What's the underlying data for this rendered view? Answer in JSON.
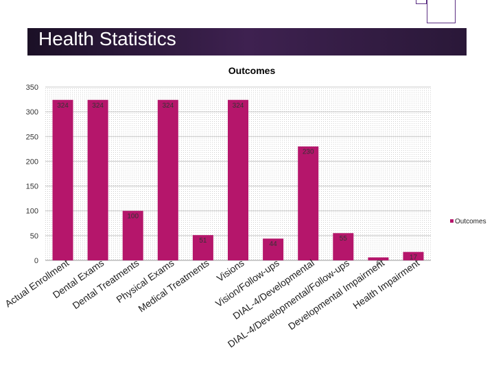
{
  "slide": {
    "title": "Health Statistics"
  },
  "chart_data": {
    "type": "bar",
    "title": "Outcomes",
    "categories": [
      "Actual Enrollment",
      "Dental Exams",
      "Dental Treatments",
      "Physical Exams",
      "Medical Treatments",
      "Visions",
      "Vision/Follow-ups",
      "DIAL-4/Developmental",
      "DIAL-4/Developmental/Follow-ups",
      "Developmental Impairment",
      "Health Impairment"
    ],
    "series": [
      {
        "name": "Outcomes",
        "values": [
          324,
          324,
          100,
          324,
          51,
          324,
          44,
          230,
          55,
          6,
          17
        ]
      }
    ],
    "ylim": [
      0,
      350
    ],
    "yticks": [
      0,
      50,
      100,
      150,
      200,
      250,
      300,
      350
    ],
    "grid": true,
    "legend": "right",
    "bar_color": "#b5166b",
    "xlabel": "",
    "ylabel": ""
  }
}
